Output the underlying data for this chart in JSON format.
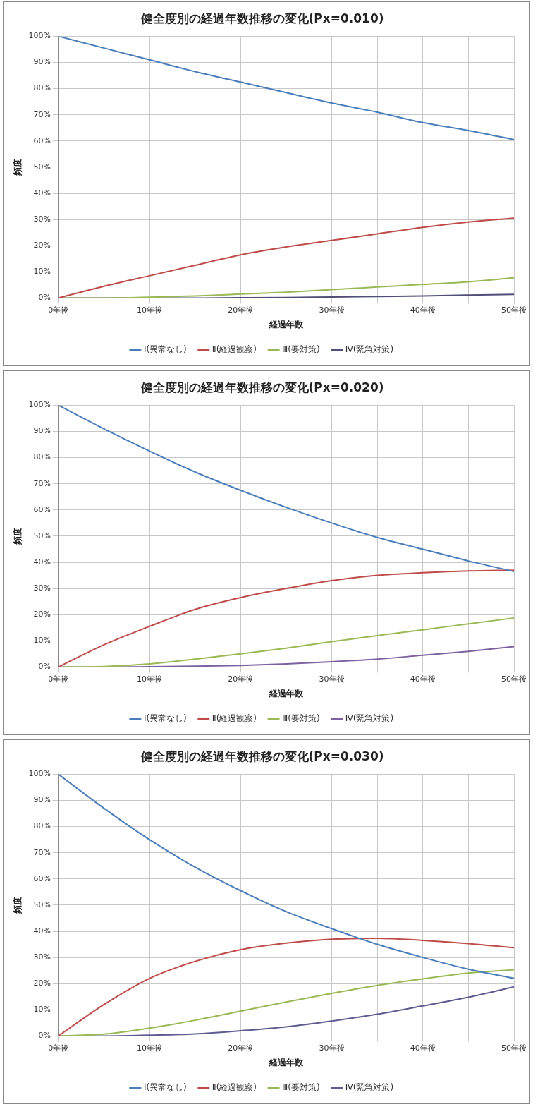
{
  "chart_data": [
    {
      "type": "line",
      "title": "健全度別の経過年数推移の変化(Px=0.010)",
      "xlabel": "経過年数",
      "ylabel": "頻度",
      "x": [
        0,
        5,
        10,
        15,
        20,
        25,
        30,
        35,
        40,
        45,
        50
      ],
      "xlim": [
        0,
        50
      ],
      "xticks": [
        {
          "value": 0,
          "label": "0年後"
        },
        {
          "value": 5,
          "label": null
        },
        {
          "value": 10,
          "label": "10年後"
        },
        {
          "value": 15,
          "label": null
        },
        {
          "value": 20,
          "label": "20年後"
        },
        {
          "value": 25,
          "label": null
        },
        {
          "value": 30,
          "label": "30年後"
        },
        {
          "value": 35,
          "label": null
        },
        {
          "value": 40,
          "label": "40年後"
        },
        {
          "value": 45,
          "label": null
        },
        {
          "value": 50,
          "label": "50年後"
        }
      ],
      "ylim": [
        0,
        100
      ],
      "yticks": [
        {
          "value": 0,
          "label": "0%"
        },
        {
          "value": 10,
          "label": "10%"
        },
        {
          "value": 20,
          "label": "20%"
        },
        {
          "value": 30,
          "label": "30%"
        },
        {
          "value": 40,
          "label": "40%"
        },
        {
          "value": 50,
          "label": "50%"
        },
        {
          "value": 60,
          "label": "60%"
        },
        {
          "value": 70,
          "label": "70%"
        },
        {
          "value": 80,
          "label": "80%"
        },
        {
          "value": 90,
          "label": "90%"
        },
        {
          "value": 100,
          "label": "100%"
        }
      ],
      "grid": true,
      "legend": "bottom",
      "marker": "none",
      "line_style": "solid",
      "series": [
        {
          "name": "Ⅰ(異常なし)",
          "color": "#4a7ebb",
          "values": [
            100,
            95.5,
            91,
            86.5,
            82.5,
            78.5,
            74.5,
            71,
            67,
            64,
            60.5
          ]
        },
        {
          "name": "Ⅱ(経過観察)",
          "color": "#be4b48",
          "values": [
            0,
            4.5,
            8.5,
            12.5,
            16.5,
            19.5,
            22,
            24.5,
            27,
            29,
            30.5
          ]
        },
        {
          "name": "Ⅲ(要対策)",
          "color": "#98b954",
          "values": [
            0,
            0,
            0.3,
            0.8,
            1.5,
            2.2,
            3.2,
            4.2,
            5.2,
            6.2,
            7.7
          ]
        },
        {
          "name": "Ⅳ(緊急対策)",
          "color": "#4f4f7a",
          "values": [
            0,
            0,
            0,
            0,
            0.1,
            0.2,
            0.4,
            0.6,
            0.8,
            1.1,
            1.4
          ]
        }
      ]
    },
    {
      "type": "line",
      "title": "健全度別の経過年数推移の変化(Px=0.020)",
      "xlabel": "経過年数",
      "ylabel": "頻度",
      "x": [
        0,
        5,
        10,
        15,
        20,
        25,
        30,
        35,
        40,
        45,
        50
      ],
      "xlim": [
        0,
        50
      ],
      "xticks": [
        {
          "value": 0,
          "label": "0年後"
        },
        {
          "value": 5,
          "label": null
        },
        {
          "value": 10,
          "label": "10年後"
        },
        {
          "value": 15,
          "label": null
        },
        {
          "value": 20,
          "label": "20年後"
        },
        {
          "value": 25,
          "label": null
        },
        {
          "value": 30,
          "label": "30年後"
        },
        {
          "value": 35,
          "label": null
        },
        {
          "value": 40,
          "label": "40年後"
        },
        {
          "value": 45,
          "label": null
        },
        {
          "value": 50,
          "label": "50年後"
        }
      ],
      "ylim": [
        0,
        100
      ],
      "yticks": [
        {
          "value": 0,
          "label": "0%"
        },
        {
          "value": 10,
          "label": "10%"
        },
        {
          "value": 20,
          "label": "20%"
        },
        {
          "value": 30,
          "label": "30%"
        },
        {
          "value": 40,
          "label": "40%"
        },
        {
          "value": 50,
          "label": "50%"
        },
        {
          "value": 60,
          "label": "60%"
        },
        {
          "value": 70,
          "label": "70%"
        },
        {
          "value": 80,
          "label": "80%"
        },
        {
          "value": 90,
          "label": "90%"
        },
        {
          "value": 100,
          "label": "100%"
        }
      ],
      "grid": true,
      "legend": "bottom",
      "marker": "none",
      "line_style": "solid",
      "series": [
        {
          "name": "Ⅰ(異常なし)",
          "color": "#4a7ebb",
          "values": [
            100,
            91,
            82.5,
            74.5,
            67.5,
            61,
            55,
            49.5,
            45,
            40.5,
            36.5
          ]
        },
        {
          "name": "Ⅱ(経過観察)",
          "color": "#be4b48",
          "values": [
            0,
            8.5,
            15.5,
            22,
            26.5,
            30,
            33,
            35,
            36,
            36.7,
            37
          ]
        },
        {
          "name": "Ⅲ(要対策)",
          "color": "#98b954",
          "values": [
            0,
            0.2,
            1.2,
            3,
            5,
            7.2,
            9.7,
            12,
            14.2,
            16.5,
            18.7
          ]
        },
        {
          "name": "Ⅳ(緊急対策)",
          "color": "#7d60a0",
          "values": [
            0,
            0,
            0.1,
            0.3,
            0.6,
            1.2,
            2,
            3,
            4.5,
            6,
            7.8
          ]
        }
      ]
    },
    {
      "type": "line",
      "title": "健全度別の経過年数推移の変化(Px=0.030)",
      "xlabel": "経過年数",
      "ylabel": "頻度",
      "x": [
        0,
        5,
        10,
        15,
        20,
        25,
        30,
        35,
        40,
        45,
        50
      ],
      "xlim": [
        0,
        50
      ],
      "xticks": [
        {
          "value": 0,
          "label": "0年後"
        },
        {
          "value": 5,
          "label": null
        },
        {
          "value": 10,
          "label": "10年後"
        },
        {
          "value": 15,
          "label": null
        },
        {
          "value": 20,
          "label": "20年後"
        },
        {
          "value": 25,
          "label": null
        },
        {
          "value": 30,
          "label": "30年後"
        },
        {
          "value": 35,
          "label": null
        },
        {
          "value": 40,
          "label": "40年後"
        },
        {
          "value": 45,
          "label": null
        },
        {
          "value": 50,
          "label": "50年後"
        }
      ],
      "ylim": [
        0,
        100
      ],
      "yticks": [
        {
          "value": 0,
          "label": "0%"
        },
        {
          "value": 10,
          "label": "10%"
        },
        {
          "value": 20,
          "label": "20%"
        },
        {
          "value": 30,
          "label": "30%"
        },
        {
          "value": 40,
          "label": "40%"
        },
        {
          "value": 50,
          "label": "50%"
        },
        {
          "value": 60,
          "label": "60%"
        },
        {
          "value": 70,
          "label": "70%"
        },
        {
          "value": 80,
          "label": "80%"
        },
        {
          "value": 90,
          "label": "90%"
        },
        {
          "value": 100,
          "label": "100%"
        }
      ],
      "grid": true,
      "legend": "bottom",
      "marker": "none",
      "line_style": "solid",
      "series": [
        {
          "name": "Ⅰ(異常なし)",
          "color": "#4a7ebb",
          "values": [
            100,
            87,
            75,
            64.5,
            55.5,
            47.5,
            41,
            35,
            30,
            25.5,
            22
          ]
        },
        {
          "name": "Ⅱ(経過観察)",
          "color": "#be4b48",
          "values": [
            0,
            12,
            22,
            28.5,
            33,
            35.5,
            37,
            37.3,
            36.5,
            35.3,
            33.7
          ]
        },
        {
          "name": "Ⅲ(要対策)",
          "color": "#98b954",
          "values": [
            0,
            0.7,
            3,
            6,
            9.5,
            13,
            16.3,
            19.3,
            21.8,
            24,
            25.3
          ]
        },
        {
          "name": "Ⅳ(緊急対策)",
          "color": "#5c5c90",
          "values": [
            0,
            0,
            0.3,
            0.8,
            2,
            3.5,
            5.7,
            8.3,
            11.5,
            14.8,
            18.8
          ]
        }
      ]
    }
  ]
}
